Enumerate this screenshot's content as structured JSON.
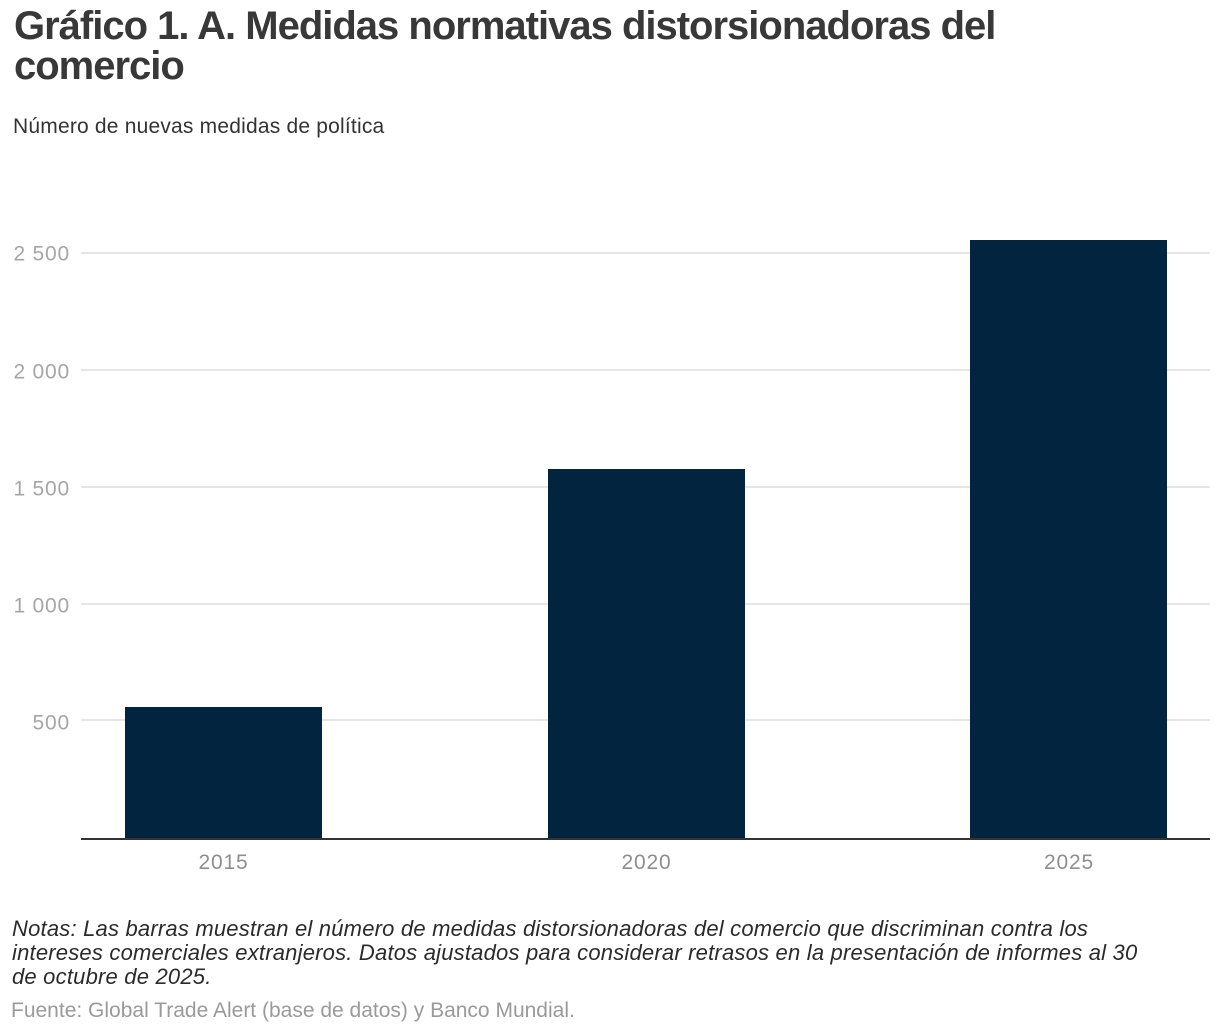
{
  "header": {
    "title": "Gráfico 1. A. Medidas normativas distorsionadoras del comercio",
    "subtitle": "Número de nuevas medidas de política"
  },
  "chart_data": {
    "type": "bar",
    "title": "Gráfico 1. A. Medidas normativas distorsionadoras del comercio",
    "subtitle": "Número de nuevas medidas de política",
    "categories": [
      "2015",
      "2020",
      "2025"
    ],
    "values": [
      560,
      1580,
      2560
    ],
    "xlabel": "",
    "ylabel": "Número de nuevas medidas de política",
    "ylim": [
      0,
      2690
    ],
    "yticks": [
      500,
      1000,
      1500,
      2000,
      2500
    ],
    "ytick_labels": [
      "500",
      "1 000",
      "1 500",
      "2 000",
      "2 500"
    ],
    "grid": true,
    "legend": false,
    "bar_color": "#02243f"
  },
  "footer": {
    "notes": "Notas: Las barras muestran el número de medidas distorsionadoras del comercio que discriminan contra los intereses comerciales extranjeros. Datos ajustados para considerar retrasos en la presentación de informes al 30 de octubre de 2025.",
    "source": "Fuente: Global Trade Alert (base de datos) y Banco Mundial."
  },
  "colors": {
    "bar": "#02243f",
    "gridline": "#e6e6e6",
    "axis_line": "#333333",
    "y_tick_text": "#a6a6a6",
    "x_tick_text": "#8e8e8e",
    "title_text": "#383838",
    "notes_text": "#2b2b2b",
    "source_text": "#9a9a9a"
  }
}
